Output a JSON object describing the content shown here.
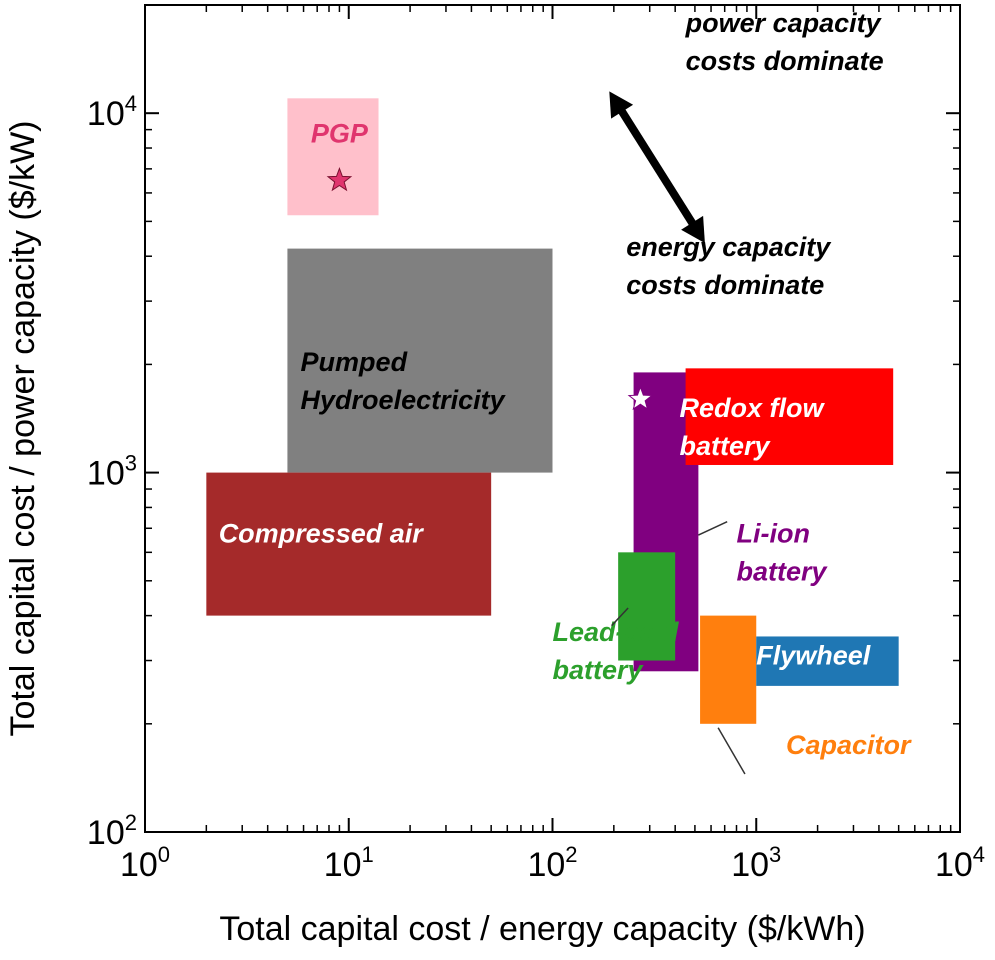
{
  "chart_data": {
    "type": "scatter",
    "xlabel": "Total capital cost / energy capacity ($/kWh)",
    "ylabel": "Total capital cost / power capacity ($/kW)",
    "x_scale": "log",
    "y_scale": "log",
    "xlim": [
      1,
      10000
    ],
    "ylim": [
      100,
      20000
    ],
    "x_ticks": [
      {
        "base": "10",
        "exp": "0",
        "value": 1
      },
      {
        "base": "10",
        "exp": "1",
        "value": 10
      },
      {
        "base": "10",
        "exp": "2",
        "value": 100
      },
      {
        "base": "10",
        "exp": "3",
        "value": 1000
      },
      {
        "base": "10",
        "exp": "4",
        "value": 10000
      }
    ],
    "y_ticks": [
      {
        "base": "10",
        "exp": "2",
        "value": 100
      },
      {
        "base": "10",
        "exp": "3",
        "value": 1000
      },
      {
        "base": "10",
        "exp": "4",
        "value": 10000
      }
    ],
    "grid": false,
    "regions": [
      {
        "id": "pgp",
        "lines": [
          "PGP"
        ],
        "x": [
          5,
          14
        ],
        "y": [
          5200,
          11000
        ],
        "color": "#ffc0cb",
        "text_color": "#e0356e",
        "label_x": 9,
        "label_y": 8300
      },
      {
        "id": "pumped-hydro",
        "lines": [
          "Pumped",
          "Hydroelectricity"
        ],
        "x": [
          5,
          100
        ],
        "y": [
          1000,
          4200
        ],
        "color": "#808080",
        "text_color": "#000000",
        "label_x": 5.8,
        "label_y": 1920
      },
      {
        "id": "compressed-air",
        "lines": [
          "Compressed air"
        ],
        "x": [
          2,
          50
        ],
        "y": [
          400,
          1000
        ],
        "color": "#a52a2a",
        "text_color": "#ffffff",
        "label_x": 2.3,
        "label_y": 640
      },
      {
        "id": "li-ion",
        "lines": [
          "Li-ion",
          "battery"
        ],
        "x": [
          250,
          520
        ],
        "y": [
          280,
          1900
        ],
        "color": "#800080",
        "text_color": "#800080",
        "label_x": 800,
        "label_y": 640
      },
      {
        "id": "redox-flow",
        "lines": [
          "Redox flow",
          "battery"
        ],
        "x": [
          450,
          4700
        ],
        "y": [
          1050,
          1950
        ],
        "color": "#ff0000",
        "text_color": "#ffffff",
        "label_x": 420,
        "label_y": 1430
      },
      {
        "id": "lead-acid",
        "lines": [
          "Lead-acid",
          "battery"
        ],
        "x": [
          210,
          400
        ],
        "y": [
          300,
          600
        ],
        "color": "#2ca02c",
        "text_color": "#2ca02c",
        "label_x": 100,
        "label_y": 340
      },
      {
        "id": "capacitor",
        "lines": [
          "Capacitor"
        ],
        "x": [
          530,
          1000
        ],
        "y": [
          200,
          400
        ],
        "color": "#ff7f0e",
        "text_color": "#ff7f0e",
        "label_x": 1400,
        "label_y": 165
      },
      {
        "id": "flywheel",
        "lines": [
          "Flywheel"
        ],
        "x": [
          1000,
          5000
        ],
        "y": [
          255,
          350
        ],
        "color": "#1f77b4",
        "text_color": "#ffffff",
        "label_x": 1000,
        "label_y": 292
      }
    ],
    "points": [
      {
        "id": "pgp-star",
        "x": 9,
        "y": 6500,
        "fill": "#e0356e",
        "stroke": "#7a1030"
      },
      {
        "id": "li-ion-star",
        "x": 270,
        "y": 1600,
        "fill": "#ffffff",
        "stroke": "#800080"
      }
    ],
    "leaders": [
      {
        "id": "li-ion-leader",
        "from": [
          720,
          730
        ],
        "to": [
          520,
          670
        ]
      },
      {
        "id": "lead-acid-leader",
        "from": [
          195,
          375
        ],
        "to": [
          235,
          420
        ]
      },
      {
        "id": "capacitor-leader",
        "from": [
          650,
          195
        ],
        "to": [
          880,
          145
        ]
      }
    ],
    "annotations": [
      {
        "id": "power-dominate",
        "lines": [
          "power capacity",
          "costs dominate"
        ],
        "x": 450,
        "y": 16800
      },
      {
        "id": "energy-dominate",
        "lines": [
          "energy capacity",
          "costs dominate"
        ],
        "x": 230,
        "y": 4000
      }
    ],
    "arrow": {
      "from": [
        190,
        11500
      ],
      "to": [
        560,
        4350
      ]
    }
  }
}
